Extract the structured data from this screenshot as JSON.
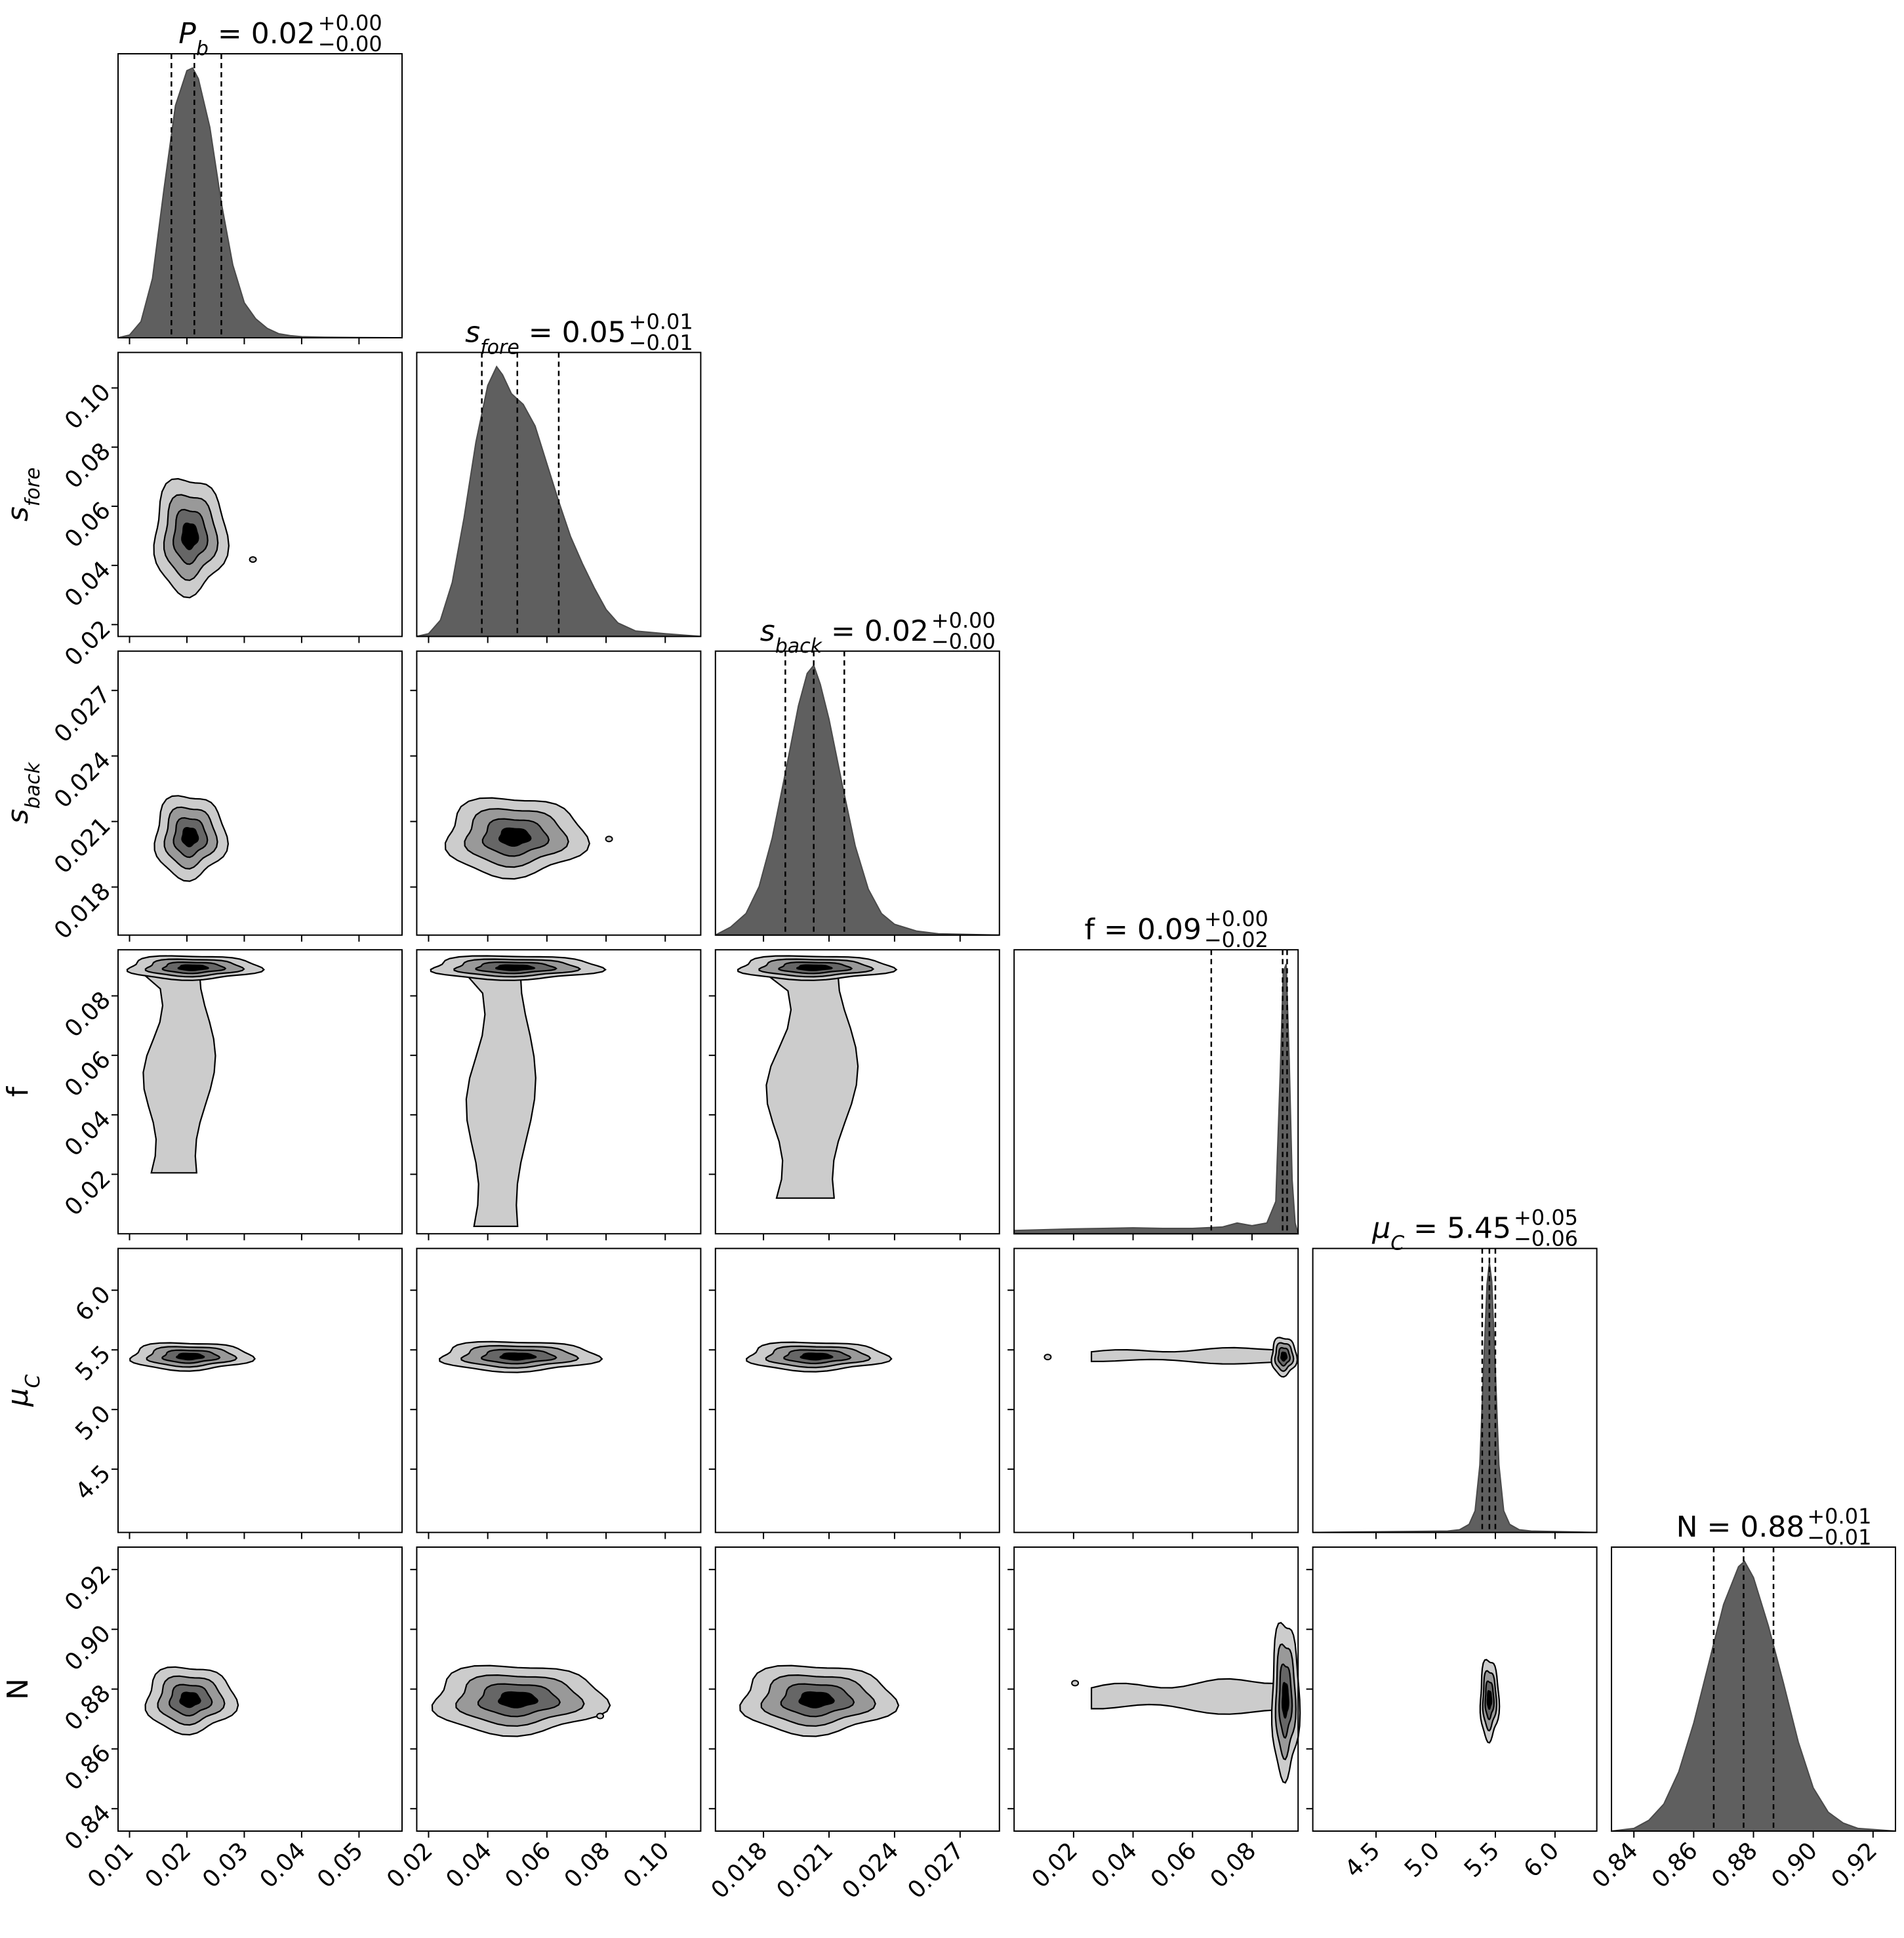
{
  "chart_data": {
    "type": "corner",
    "parameters": [
      {
        "key": "Pb",
        "label_base": "P",
        "label_sub": "b",
        "title_value": "0.02",
        "title_plus": "+0.00",
        "title_minus": "−0.00",
        "range": [
          0.008,
          0.0575
        ],
        "ticks": [
          "0.01",
          "0.02",
          "0.03",
          "0.04",
          "0.05"
        ],
        "tick_values": [
          0.01,
          0.02,
          0.03,
          0.04,
          0.05
        ],
        "quantiles": [
          0.0173,
          0.0213,
          0.026
        ],
        "hist": {
          "x": [
            0.008,
            0.01,
            0.012,
            0.014,
            0.016,
            0.018,
            0.02,
            0.021,
            0.022,
            0.024,
            0.026,
            0.028,
            0.03,
            0.032,
            0.034,
            0.036,
            0.038,
            0.04,
            0.044,
            0.05,
            0.0575
          ],
          "y": [
            0.0,
            0.01,
            0.06,
            0.22,
            0.55,
            0.86,
            0.99,
            1.0,
            0.96,
            0.78,
            0.5,
            0.27,
            0.13,
            0.07,
            0.035,
            0.015,
            0.008,
            0.004,
            0.002,
            0.001,
            0.0
          ]
        }
      },
      {
        "key": "sfore",
        "label_base": "s",
        "label_sub": "fore",
        "title_value": "0.05",
        "title_plus": "+0.01",
        "title_minus": "−0.01",
        "range": [
          0.016,
          0.112
        ],
        "ticks": [
          "0.02",
          "0.04",
          "0.06",
          "0.08",
          "0.10"
        ],
        "tick_values": [
          0.02,
          0.04,
          0.06,
          0.08,
          0.1
        ],
        "quantiles": [
          0.038,
          0.05,
          0.064
        ],
        "hist": {
          "x": [
            0.016,
            0.02,
            0.024,
            0.028,
            0.032,
            0.036,
            0.04,
            0.043,
            0.045,
            0.048,
            0.052,
            0.056,
            0.06,
            0.064,
            0.068,
            0.072,
            0.076,
            0.08,
            0.084,
            0.09,
            0.1,
            0.112
          ],
          "y": [
            0.0,
            0.01,
            0.06,
            0.2,
            0.44,
            0.72,
            0.93,
            1.0,
            0.97,
            0.9,
            0.86,
            0.78,
            0.64,
            0.5,
            0.37,
            0.27,
            0.18,
            0.1,
            0.05,
            0.02,
            0.01,
            0.0
          ]
        }
      },
      {
        "key": "sback",
        "label_base": "s",
        "label_sub": "back",
        "title_value": "0.02",
        "title_plus": "+0.00",
        "title_minus": "−0.00",
        "range": [
          0.0158,
          0.0288
        ],
        "ticks": [
          "0.018",
          "0.021",
          "0.024",
          "0.027"
        ],
        "tick_values": [
          0.018,
          0.021,
          0.024,
          0.027
        ],
        "quantiles": [
          0.019,
          0.0203,
          0.0217
        ],
        "hist": {
          "x": [
            0.0158,
            0.0165,
            0.0172,
            0.0178,
            0.0184,
            0.019,
            0.0196,
            0.02,
            0.0203,
            0.0206,
            0.021,
            0.0216,
            0.0222,
            0.0228,
            0.0234,
            0.024,
            0.025,
            0.026,
            0.0288
          ],
          "y": [
            0.0,
            0.03,
            0.08,
            0.18,
            0.36,
            0.6,
            0.85,
            0.97,
            1.0,
            0.93,
            0.8,
            0.56,
            0.33,
            0.17,
            0.08,
            0.04,
            0.015,
            0.005,
            0.0
          ]
        }
      },
      {
        "key": "f",
        "label_base": "f",
        "label_sub": "",
        "title_value": "0.09",
        "title_plus": "+0.00",
        "title_minus": "−0.02",
        "range": [
          0.0,
          0.0955
        ],
        "ticks": [
          "0.02",
          "0.04",
          "0.06",
          "0.08"
        ],
        "tick_values": [
          0.02,
          0.04,
          0.06,
          0.08
        ],
        "quantiles": [
          0.0663,
          0.0903,
          0.0918
        ],
        "hist": {
          "x": [
            0.0,
            0.01,
            0.02,
            0.03,
            0.04,
            0.05,
            0.06,
            0.07,
            0.075,
            0.08,
            0.085,
            0.088,
            0.0895,
            0.0905,
            0.0915,
            0.0925,
            0.0935,
            0.0945,
            0.0955
          ],
          "y": [
            0.012,
            0.015,
            0.018,
            0.02,
            0.022,
            0.02,
            0.02,
            0.025,
            0.04,
            0.03,
            0.04,
            0.12,
            0.6,
            0.97,
            1.0,
            0.65,
            0.2,
            0.04,
            0.0
          ]
        }
      },
      {
        "key": "muC",
        "label_base": "μ",
        "label_sub": "C",
        "title_value": "5.45",
        "title_plus": "+0.05",
        "title_minus": "−0.06",
        "range": [
          3.97,
          6.35
        ],
        "ticks": [
          "4.5",
          "5.0",
          "5.5",
          "6.0"
        ],
        "tick_values": [
          4.5,
          5.0,
          5.5,
          6.0
        ],
        "quantiles": [
          5.39,
          5.45,
          5.5
        ],
        "hist": {
          "x": [
            3.97,
            5.1,
            5.2,
            5.28,
            5.33,
            5.37,
            5.4,
            5.43,
            5.45,
            5.47,
            5.5,
            5.53,
            5.57,
            5.62,
            5.7,
            5.8,
            6.35
          ],
          "y": [
            0.0,
            0.005,
            0.01,
            0.03,
            0.08,
            0.25,
            0.6,
            0.92,
            1.0,
            0.93,
            0.6,
            0.25,
            0.08,
            0.03,
            0.01,
            0.005,
            0.0
          ]
        }
      },
      {
        "key": "N",
        "label_base": "N",
        "label_sub": "",
        "title_value": "0.88",
        "title_plus": "+0.01",
        "title_minus": "−0.01",
        "range": [
          0.8325,
          0.9275
        ],
        "ticks": [
          "0.84",
          "0.86",
          "0.88",
          "0.90",
          "0.92"
        ],
        "tick_values": [
          0.84,
          0.86,
          0.88,
          0.9,
          0.92
        ],
        "quantiles": [
          0.8667,
          0.8767,
          0.8867
        ],
        "hist": {
          "x": [
            0.8325,
            0.84,
            0.845,
            0.85,
            0.855,
            0.86,
            0.865,
            0.87,
            0.875,
            0.877,
            0.88,
            0.885,
            0.89,
            0.895,
            0.9,
            0.905,
            0.91,
            0.915,
            0.9275
          ],
          "y": [
            0.0,
            0.01,
            0.04,
            0.1,
            0.22,
            0.4,
            0.62,
            0.84,
            0.98,
            1.0,
            0.94,
            0.76,
            0.55,
            0.33,
            0.16,
            0.07,
            0.03,
            0.01,
            0.0
          ]
        }
      }
    ],
    "contours": [
      {
        "row": 1,
        "col": 0,
        "cx": 0.0205,
        "cy": 0.05,
        "rx": 0.0063,
        "ry": 0.0195,
        "outliers": [
          [
            0.0315,
            0.042
          ]
        ]
      },
      {
        "row": 2,
        "col": 0,
        "cx": 0.0205,
        "cy": 0.0203,
        "rx": 0.0062,
        "ry": 0.0019
      },
      {
        "row": 2,
        "col": 1,
        "cx": 0.049,
        "cy": 0.0203,
        "rx": 0.0235,
        "ry": 0.0018,
        "outliers": [
          [
            0.081,
            0.0202
          ]
        ]
      },
      {
        "row": 3,
        "col": 0,
        "cx": 0.021,
        "cy": 0.0895,
        "rx": 0.0115,
        "ry": 0.004,
        "tail": {
          "x0": 0.012,
          "x1": 0.027,
          "y0": 0.0205,
          "y1": 0.088
        }
      },
      {
        "row": 3,
        "col": 1,
        "cx": 0.049,
        "cy": 0.0895,
        "rx": 0.0285,
        "ry": 0.004,
        "tail": {
          "x0": 0.032,
          "x1": 0.06,
          "y0": 0.0025,
          "y1": 0.088
        }
      },
      {
        "row": 3,
        "col": 2,
        "cx": 0.0203,
        "cy": 0.0895,
        "rx": 0.0035,
        "ry": 0.004,
        "tail": {
          "x0": 0.018,
          "x1": 0.023,
          "y0": 0.012,
          "y1": 0.088
        }
      },
      {
        "row": 4,
        "col": 0,
        "cx": 0.0205,
        "cy": 5.445,
        "rx": 0.0105,
        "ry": 0.115
      },
      {
        "row": 4,
        "col": 1,
        "cx": 0.05,
        "cy": 5.445,
        "rx": 0.0265,
        "ry": 0.125
      },
      {
        "row": 4,
        "col": 2,
        "cx": 0.0204,
        "cy": 5.445,
        "rx": 0.0032,
        "ry": 0.12
      },
      {
        "row": 4,
        "col": 3,
        "cx": 0.0907,
        "cy": 5.445,
        "rx": 0.0042,
        "ry": 0.16,
        "band": {
          "x0": 0.026,
          "x1": 0.09,
          "yc": 5.45,
          "h": 0.075
        },
        "outliers": [
          [
            0.0113,
            5.44
          ]
        ]
      },
      {
        "row": 5,
        "col": 0,
        "cx": 0.0205,
        "cy": 0.8765,
        "rx": 0.0078,
        "ry": 0.011
      },
      {
        "row": 5,
        "col": 1,
        "cx": 0.05,
        "cy": 0.8765,
        "rx": 0.029,
        "ry": 0.0115,
        "outliers": [
          [
            0.078,
            0.871
          ]
        ]
      },
      {
        "row": 5,
        "col": 2,
        "cx": 0.0204,
        "cy": 0.8765,
        "rx": 0.0035,
        "ry": 0.0115
      },
      {
        "row": 5,
        "col": 3,
        "cx": 0.0912,
        "cy": 0.8765,
        "rx": 0.0046,
        "ry": 0.026,
        "band": {
          "x0": 0.026,
          "x1": 0.088,
          "yc": 0.8775,
          "h": 0.0065
        },
        "outliers": [
          [
            0.0205,
            0.882
          ]
        ]
      },
      {
        "row": 5,
        "col": 4,
        "cx": 5.45,
        "cy": 0.8765,
        "rx": 0.078,
        "ry": 0.0135
      }
    ]
  }
}
